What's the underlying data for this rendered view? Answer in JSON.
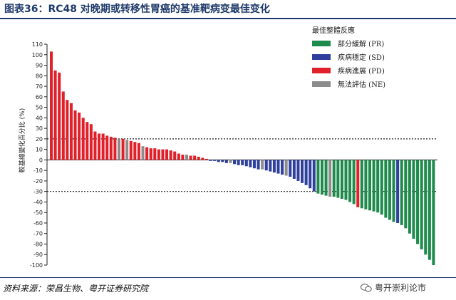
{
  "header": {
    "title": "图表36：RC48 对晚期或转移性胃癌的基准靶病变最佳变化"
  },
  "footer": {
    "source": "资料来源：荣昌生物、粤开证券研究院",
    "watermark": "粤开崇利论市"
  },
  "chart_data": {
    "type": "bar",
    "title": "",
    "xlabel": "",
    "ylabel": "較基線變化百分比 (%)",
    "ylim": [
      -100,
      110
    ],
    "yticks": [
      110,
      100,
      90,
      80,
      70,
      60,
      50,
      40,
      30,
      20,
      10,
      0,
      -10,
      -20,
      -30,
      -40,
      -50,
      -60,
      -70,
      -80,
      -90,
      -100
    ],
    "reference_lines": [
      20,
      -30
    ],
    "legend": {
      "title": "最佳整體反應",
      "position": "top-right",
      "items": [
        {
          "key": "PR",
          "label": "部分緩解 (PR)",
          "color": "#1e8a4c"
        },
        {
          "key": "SD",
          "label": "疾病穩定 (SD)",
          "color": "#2e3f9e"
        },
        {
          "key": "PD",
          "label": "疾病進展 (PD)",
          "color": "#e0202a"
        },
        {
          "key": "NE",
          "label": "無法評估 (NE)",
          "color": "#8c8c8c"
        }
      ]
    },
    "bars": [
      {
        "value": 103,
        "category": "PD"
      },
      {
        "value": 85,
        "category": "PD"
      },
      {
        "value": 83,
        "category": "PD"
      },
      {
        "value": 65,
        "category": "PD"
      },
      {
        "value": 57,
        "category": "PD"
      },
      {
        "value": 54,
        "category": "PD"
      },
      {
        "value": 47,
        "category": "PD"
      },
      {
        "value": 45,
        "category": "PD"
      },
      {
        "value": 40,
        "category": "PD"
      },
      {
        "value": 36,
        "category": "PD"
      },
      {
        "value": 34,
        "category": "PD"
      },
      {
        "value": 27,
        "category": "PD"
      },
      {
        "value": 25,
        "category": "PD"
      },
      {
        "value": 25,
        "category": "PD"
      },
      {
        "value": 23,
        "category": "PD"
      },
      {
        "value": 22,
        "category": "PD"
      },
      {
        "value": 21,
        "category": "PD"
      },
      {
        "value": 20,
        "category": "NE"
      },
      {
        "value": 20,
        "category": "PD"
      },
      {
        "value": 19,
        "category": "NE"
      },
      {
        "value": 18,
        "category": "PD"
      },
      {
        "value": 17,
        "category": "PD"
      },
      {
        "value": 16,
        "category": "PD"
      },
      {
        "value": 13,
        "category": "NE"
      },
      {
        "value": 12,
        "category": "PD"
      },
      {
        "value": 11,
        "category": "PD"
      },
      {
        "value": 11,
        "category": "PD"
      },
      {
        "value": 10,
        "category": "PD"
      },
      {
        "value": 10,
        "category": "PD"
      },
      {
        "value": 10,
        "category": "PD"
      },
      {
        "value": 9,
        "category": "PD"
      },
      {
        "value": 8,
        "category": "PD"
      },
      {
        "value": 6,
        "category": "PD"
      },
      {
        "value": 5,
        "category": "PD"
      },
      {
        "value": 5,
        "category": "NE"
      },
      {
        "value": 4,
        "category": "PD"
      },
      {
        "value": 4,
        "category": "PD"
      },
      {
        "value": 3,
        "category": "PD"
      },
      {
        "value": 2,
        "category": "PD"
      },
      {
        "value": 1,
        "category": "PD"
      },
      {
        "value": -1,
        "category": "SD"
      },
      {
        "value": -1,
        "category": "SD"
      },
      {
        "value": -2,
        "category": "SD"
      },
      {
        "value": -2,
        "category": "SD"
      },
      {
        "value": -3,
        "category": "SD"
      },
      {
        "value": -3,
        "category": "NE"
      },
      {
        "value": -4,
        "category": "SD"
      },
      {
        "value": -5,
        "category": "SD"
      },
      {
        "value": -5,
        "category": "SD"
      },
      {
        "value": -6,
        "category": "SD"
      },
      {
        "value": -7,
        "category": "SD"
      },
      {
        "value": -8,
        "category": "SD"
      },
      {
        "value": -9,
        "category": "SD"
      },
      {
        "value": -9,
        "category": "NE"
      },
      {
        "value": -10,
        "category": "SD"
      },
      {
        "value": -11,
        "category": "SD"
      },
      {
        "value": -12,
        "category": "SD"
      },
      {
        "value": -13,
        "category": "SD"
      },
      {
        "value": -14,
        "category": "SD"
      },
      {
        "value": -15,
        "category": "NE"
      },
      {
        "value": -16,
        "category": "SD"
      },
      {
        "value": -18,
        "category": "SD"
      },
      {
        "value": -20,
        "category": "SD"
      },
      {
        "value": -22,
        "category": "SD"
      },
      {
        "value": -24,
        "category": "SD"
      },
      {
        "value": -27,
        "category": "SD"
      },
      {
        "value": -30,
        "category": "SD"
      },
      {
        "value": -32,
        "category": "PR"
      },
      {
        "value": -33,
        "category": "PR"
      },
      {
        "value": -34,
        "category": "PR"
      },
      {
        "value": -35,
        "category": "NE"
      },
      {
        "value": -35,
        "category": "PR"
      },
      {
        "value": -36,
        "category": "PR"
      },
      {
        "value": -37,
        "category": "PR"
      },
      {
        "value": -38,
        "category": "PR"
      },
      {
        "value": -40,
        "category": "PR"
      },
      {
        "value": -42,
        "category": "PR"
      },
      {
        "value": -45,
        "category": "PD"
      },
      {
        "value": -46,
        "category": "PR"
      },
      {
        "value": -47,
        "category": "PR"
      },
      {
        "value": -48,
        "category": "PR"
      },
      {
        "value": -49,
        "category": "PR"
      },
      {
        "value": -50,
        "category": "PR"
      },
      {
        "value": -52,
        "category": "PR"
      },
      {
        "value": -55,
        "category": "PR"
      },
      {
        "value": -57,
        "category": "PR"
      },
      {
        "value": -59,
        "category": "PR"
      },
      {
        "value": -60,
        "category": "SD"
      },
      {
        "value": -62,
        "category": "PR"
      },
      {
        "value": -65,
        "category": "PR"
      },
      {
        "value": -70,
        "category": "PR"
      },
      {
        "value": -75,
        "category": "PR"
      },
      {
        "value": -80,
        "category": "PR"
      },
      {
        "value": -85,
        "category": "PR"
      },
      {
        "value": -90,
        "category": "PR"
      },
      {
        "value": -95,
        "category": "PR"
      },
      {
        "value": -100,
        "category": "PR"
      }
    ]
  }
}
